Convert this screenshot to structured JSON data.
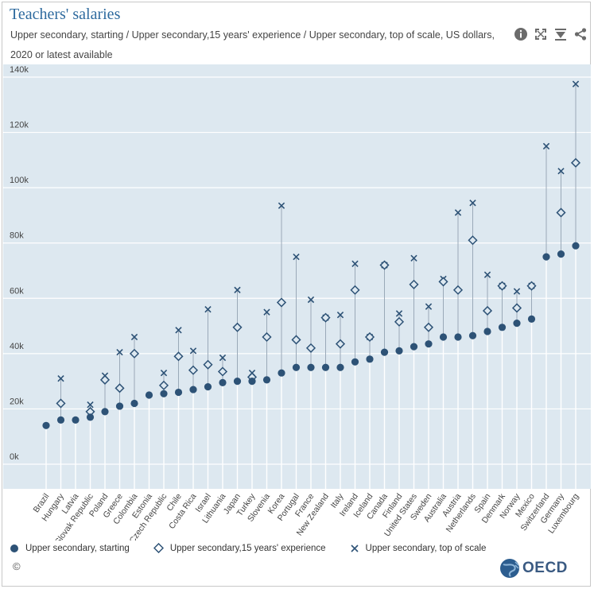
{
  "header": {
    "title": "Teachers' salaries",
    "subtitle_line1": "Upper secondary, starting / Upper secondary,15 years' experience / Upper secondary, top of scale, US dollars,",
    "subtitle_line2": "2020 or latest available"
  },
  "toolbar": {
    "icons": [
      "info-icon",
      "fullscreen-icon",
      "download-icon",
      "share-icon"
    ]
  },
  "footer": {
    "copyright": "©",
    "logo_text": "OECD"
  },
  "colors": {
    "background": "#dde8f0",
    "marker": "#2d5276",
    "stem": "#9aa9b8",
    "title": "#2e6a9e"
  },
  "chart_data": {
    "type": "scatter",
    "ylim": [
      0,
      140000
    ],
    "yticks": [
      0,
      20000,
      40000,
      60000,
      80000,
      100000,
      120000,
      140000
    ],
    "ytick_labels": [
      "0k",
      "20k",
      "40k",
      "60k",
      "80k",
      "100k",
      "120k",
      "140k"
    ],
    "grid": true,
    "legend_position": "bottom",
    "categories": [
      "Brazil",
      "Hungary",
      "Latvia",
      "Slovak Republic",
      "Poland",
      "Greece",
      "Colombia",
      "Estonia",
      "Czech Republic",
      "Chile",
      "Costa Rica",
      "Israel",
      "Lithuania",
      "Japan",
      "Turkey",
      "Slovenia",
      "Korea",
      "Portugal",
      "France",
      "New Zealand",
      "Italy",
      "Ireland",
      "Iceland",
      "Canada",
      "Finland",
      "United States",
      "Sweden",
      "Australia",
      "Austria",
      "Netherlands",
      "Spain",
      "Denmark",
      "Norway",
      "Mexico",
      "Switzerland",
      "Germany",
      "Luxembourg"
    ],
    "series": [
      {
        "name": "Upper secondary, starting",
        "marker": "circle",
        "values": [
          14000,
          16000,
          16000,
          17000,
          19000,
          21000,
          22000,
          25000,
          25500,
          26000,
          27000,
          28000,
          29500,
          30000,
          30000,
          30500,
          33000,
          35000,
          35000,
          35000,
          35000,
          37000,
          38000,
          40500,
          41000,
          42500,
          43500,
          46000,
          46000,
          46500,
          48000,
          49500,
          51000,
          52500,
          75000,
          76000,
          79000
        ]
      },
      {
        "name": "Upper secondary,15 years' experience",
        "marker": "diamond",
        "values": [
          null,
          22000,
          null,
          19000,
          30500,
          27500,
          40000,
          null,
          28500,
          39000,
          34000,
          36000,
          33500,
          49500,
          31500,
          46000,
          58500,
          45000,
          42000,
          53000,
          43500,
          63000,
          46000,
          72000,
          51500,
          65000,
          49500,
          66000,
          63000,
          81000,
          55500,
          64500,
          56500,
          64500,
          null,
          91000,
          109000
        ]
      },
      {
        "name": "Upper secondary, top of scale",
        "marker": "x",
        "values": [
          null,
          31000,
          null,
          21500,
          32000,
          40500,
          46000,
          null,
          33000,
          48500,
          41000,
          56000,
          38500,
          63000,
          33000,
          55000,
          93500,
          75000,
          59500,
          53000,
          54000,
          72500,
          46000,
          72000,
          54500,
          74500,
          57000,
          67000,
          91000,
          94500,
          68500,
          64500,
          62500,
          64500,
          115000,
          106000,
          137500
        ]
      }
    ]
  }
}
